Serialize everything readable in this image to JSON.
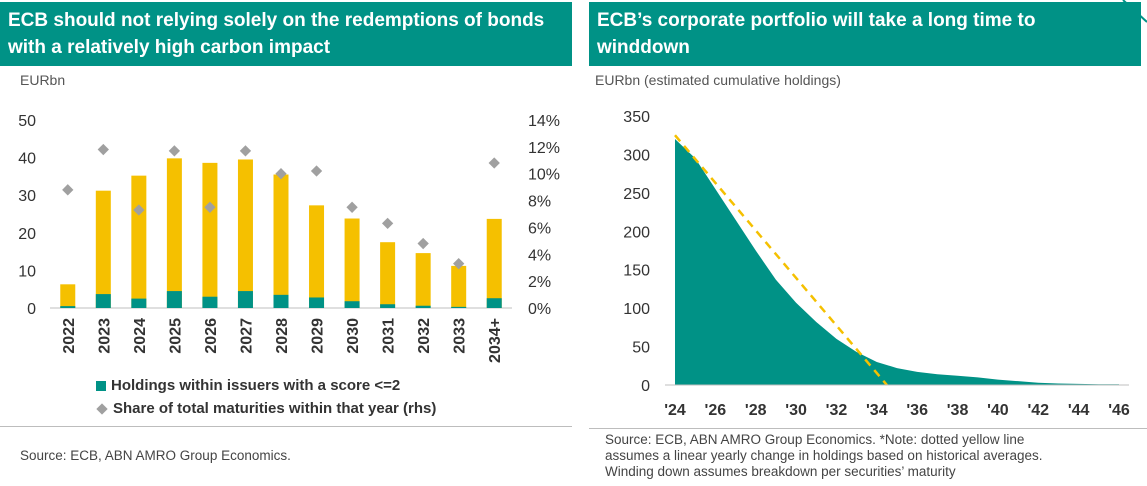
{
  "left": {
    "title": "ECB should not relying solely on the redemptions of bonds with a relatively high carbon impact",
    "unit": "EURbn",
    "legend": {
      "holdings": "Holdings within issuers with a score <=2",
      "share": "Share of total maturities within that year (rhs)"
    },
    "source": "Source: ECB, ABN AMRO Group Economics."
  },
  "right": {
    "title": "ECB’s corporate portfolio will take a long time to winddown",
    "unit": "EURbn (estimated cumulative holdings)",
    "source_lines": [
      "Source: ECB, ABN AMRO Group Economics. *Note: dotted yellow line",
      "assumes a linear yearly change in holdings based on historical averages.",
      "Winding down assumes breakdown per securities’ maturity"
    ]
  },
  "colors": {
    "teal": "#009286",
    "yellow": "#f5c000",
    "diamond": "#a0a0a0",
    "title_bg": "#009286"
  },
  "chart_data": [
    {
      "type": "bar",
      "categories": [
        "2022",
        "2023",
        "2024",
        "2025",
        "2026",
        "2027",
        "2028",
        "2029",
        "2030",
        "2031",
        "2032",
        "2033",
        "2034+"
      ],
      "series": [
        {
          "name": "Holdings within issuers with a score <=2",
          "values": [
            0.5,
            3.7,
            2.5,
            4.5,
            3.0,
            4.5,
            3.5,
            2.8,
            1.8,
            1.0,
            0.6,
            0.3,
            2.6
          ]
        },
        {
          "values": [
            6.3,
            31.2,
            35.2,
            39.8,
            38.6,
            39.5,
            35.5,
            27.3,
            23.8,
            17.5,
            14.6,
            11.2,
            23.7
          ]
        },
        {
          "name": "Share of total maturities within that year (rhs)",
          "axis": "right",
          "values": [
            8.8,
            11.8,
            7.3,
            11.7,
            7.5,
            11.7,
            10.0,
            10.2,
            7.5,
            6.3,
            4.8,
            3.3,
            10.8
          ]
        }
      ],
      "ylabel": "EURbn",
      "y_ticks": [
        "0",
        "10",
        "20",
        "30",
        "40",
        "50"
      ],
      "ylim": [
        0,
        50
      ],
      "y2_ticks": [
        "0%",
        "2%",
        "4%",
        "6%",
        "8%",
        "10%",
        "12%",
        "14%"
      ],
      "y2lim": [
        0,
        14
      ],
      "grid": false,
      "legend_position": "bottom"
    },
    {
      "type": "area",
      "x": [
        2024,
        2025,
        2026,
        2027,
        2028,
        2029,
        2030,
        2031,
        2032,
        2033,
        2034,
        2035,
        2036,
        2037,
        2038,
        2039,
        2040,
        2041,
        2042,
        2043,
        2044,
        2045,
        2046
      ],
      "series": [
        {
          "values": [
            320,
            295,
            255,
            215,
            175,
            137,
            107,
            82,
            60,
            43,
            30,
            22,
            17,
            14,
            12,
            10,
            7,
            5,
            3,
            2,
            1.5,
            1,
            1
          ]
        },
        {
          "style": "dashed",
          "x": [
            2024,
            2034.5
          ],
          "values": [
            325,
            0
          ]
        }
      ],
      "x_ticks": [
        "'24",
        "'26",
        "'28",
        "'30",
        "'32",
        "'34",
        "'36",
        "'38",
        "'40",
        "'42",
        "'44",
        "'46"
      ],
      "y_ticks": [
        "0",
        "50",
        "100",
        "150",
        "200",
        "250",
        "300",
        "350"
      ],
      "ylim": [
        0,
        350
      ],
      "ylabel": "EURbn (estimated cumulative holdings)",
      "grid": false
    }
  ]
}
